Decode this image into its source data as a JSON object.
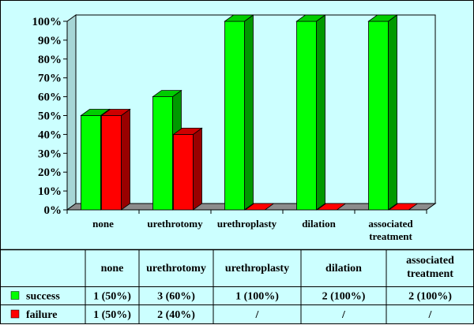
{
  "chart_data": {
    "type": "bar",
    "categories": [
      "none",
      "urethrotomy",
      "urethroplasty",
      "dilation",
      [
        "associated",
        "treatment"
      ]
    ],
    "series": [
      {
        "name": "success",
        "values": [
          50,
          60,
          100,
          100,
          100
        ],
        "color": "#00ff00",
        "table": [
          "1 (50%)",
          "3 (60%)",
          "1 (100%)",
          "2 (100%)",
          "2 (100%)"
        ]
      },
      {
        "name": "failure",
        "values": [
          50,
          40,
          0,
          0,
          0
        ],
        "color": "#ff0000",
        "table": [
          "1 (50%)",
          "2 (40%)",
          "/",
          "/",
          "/"
        ]
      }
    ],
    "yticks": [
      "0%",
      "10%",
      "20%",
      "30%",
      "40%",
      "50%",
      "60%",
      "70%",
      "80%",
      "90%",
      "100%"
    ],
    "ylim": [
      0,
      100
    ],
    "grid": false,
    "background": "#ccffff",
    "legend": "data table"
  }
}
